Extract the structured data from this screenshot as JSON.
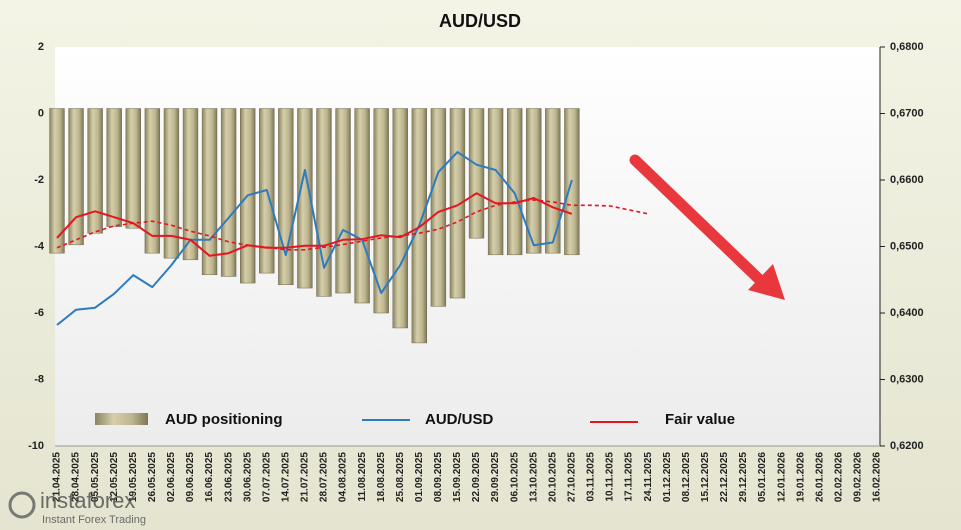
{
  "chart_data": {
    "type": "combo",
    "title": "AUD/USD",
    "categories": [
      "21.04.2025",
      "28.04.2025",
      "05.05.2025",
      "12.05.2025",
      "19.05.2025",
      "26.05.2025",
      "02.06.2025",
      "09.06.2025",
      "16.06.2025",
      "23.06.2025",
      "30.06.2025",
      "07.07.2025",
      "14.07.2025",
      "21.07.2025",
      "28.07.2025",
      "04.08.2025",
      "11.08.2025",
      "18.08.2025",
      "25.08.2025",
      "01.09.2025",
      "08.09.2025",
      "15.09.2025",
      "22.09.2025",
      "29.09.2025",
      "06.10.2025",
      "13.10.2025",
      "20.10.2025",
      "27.10.2025",
      "03.11.2025",
      "10.11.2025",
      "17.11.2025",
      "24.11.2025",
      "01.12.2025",
      "08.12.2025",
      "15.12.2025",
      "22.12.2025",
      "29.12.2025",
      "05.01.2026",
      "12.01.2026",
      "19.01.2026",
      "26.01.2026",
      "02.02.2026",
      "09.02.2026",
      "16.02.2026"
    ],
    "ylim": [
      -10,
      2
    ],
    "yticks": [
      2,
      0,
      -2,
      -4,
      -6,
      -8,
      -10
    ],
    "y2lim": [
      0.62,
      0.68
    ],
    "y2ticks": [
      {
        "value": 0.68,
        "label": "0,6800"
      },
      {
        "value": 0.67,
        "label": "0,6700"
      },
      {
        "value": 0.66,
        "label": "0,6600"
      },
      {
        "value": 0.65,
        "label": "0,6500"
      },
      {
        "value": 0.64,
        "label": "0,6400"
      },
      {
        "value": 0.63,
        "label": "0,6300"
      },
      {
        "value": 0.62,
        "label": "0,6200"
      }
    ],
    "series": [
      {
        "name": "AUD positioning",
        "type": "bar",
        "color": "#b8b08a",
        "axis": "y",
        "values": [
          -4.2,
          -3.95,
          -3.6,
          -3.4,
          -3.45,
          -4.2,
          -4.35,
          -4.4,
          -4.85,
          -4.9,
          -5.1,
          -4.8,
          -5.15,
          -5.25,
          -5.5,
          -5.4,
          -5.7,
          -6.0,
          -6.45,
          -6.9,
          -5.8,
          -5.55,
          -3.75,
          -4.25,
          -4.25,
          -4.2,
          -4.2,
          -4.25,
          null,
          null,
          null,
          null,
          null,
          null,
          null,
          null,
          null,
          null,
          null,
          null,
          null,
          null,
          null,
          null
        ]
      },
      {
        "name": "AUD/USD",
        "type": "line",
        "color": "#2e7bbf",
        "axis": "y2",
        "values": [
          0.6382,
          0.6405,
          0.6408,
          0.6429,
          0.6457,
          0.6439,
          0.6472,
          0.651,
          0.651,
          0.6543,
          0.6577,
          0.6585,
          0.6487,
          0.6615,
          0.6468,
          0.6525,
          0.651,
          0.643,
          0.6472,
          0.6532,
          0.6612,
          0.6642,
          0.6623,
          0.6615,
          0.658,
          0.6502,
          0.6506,
          0.66,
          null,
          null,
          null,
          null,
          null,
          null,
          null,
          null,
          null,
          null,
          null,
          null,
          null,
          null,
          null,
          null
        ]
      },
      {
        "name": "Fair value",
        "type": "line",
        "color": "#e8141e",
        "axis": "y2",
        "values": [
          0.6513,
          0.6544,
          0.6553,
          0.6544,
          0.6535,
          0.6516,
          0.6516,
          0.651,
          0.6486,
          0.649,
          0.6502,
          0.6498,
          0.6498,
          0.6501,
          0.6501,
          0.651,
          0.6511,
          0.6517,
          0.6514,
          0.6529,
          0.6552,
          0.6562,
          0.658,
          0.6565,
          0.6565,
          0.6573,
          0.6559,
          0.6549,
          null,
          null,
          null,
          null,
          null,
          null,
          null,
          null,
          null,
          null,
          null,
          null,
          null,
          null,
          null,
          null
        ]
      },
      {
        "type": "line",
        "dashed": true,
        "color": "#e8141e",
        "axis": "y2",
        "values": [
          0.6498,
          0.651,
          0.6522,
          0.6531,
          0.6535,
          0.6538,
          0.6532,
          0.6523,
          0.6516,
          0.6507,
          0.6502,
          0.6499,
          0.6495,
          0.6495,
          0.6499,
          0.6503,
          0.6508,
          0.6513,
          0.6516,
          0.652,
          0.6526,
          0.6537,
          0.6552,
          0.6562,
          0.6567,
          0.657,
          0.6567,
          0.6562,
          0.6562,
          0.6561,
          0.6555,
          0.6549,
          null,
          null,
          null,
          null,
          null,
          null,
          null,
          null,
          null,
          null,
          null,
          null
        ]
      }
    ]
  },
  "logo": {
    "name": "instaforex",
    "tagline": "Instant Forex Trading"
  }
}
